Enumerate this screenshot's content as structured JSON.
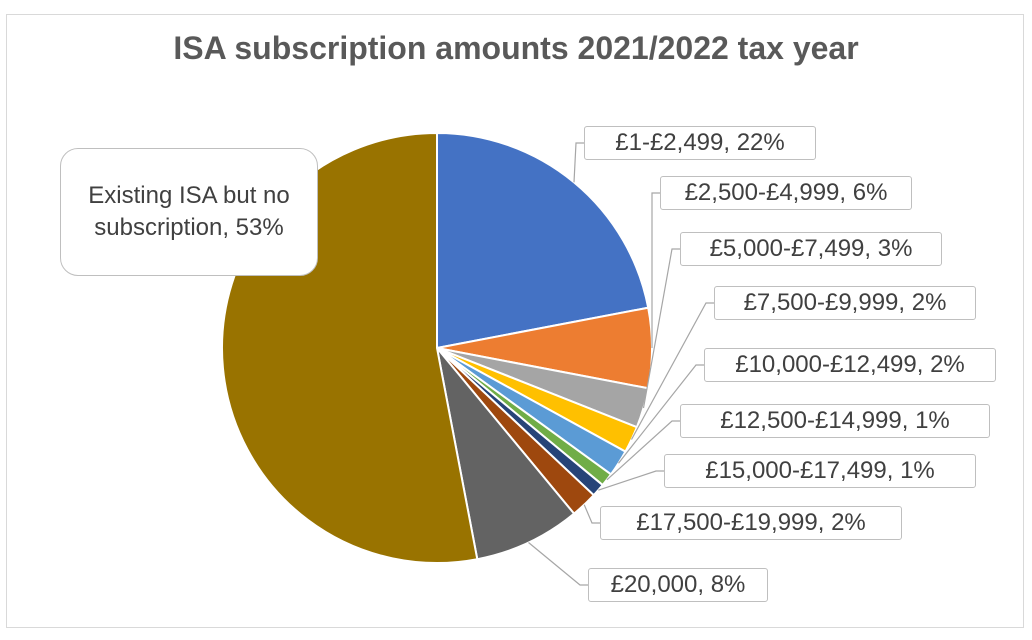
{
  "chart_data": {
    "type": "pie",
    "title": "ISA subscription amounts 2021/2022 tax year",
    "slices": [
      {
        "label": "£1-£2,499",
        "value": 22,
        "display": "£1-£2,499, 22%",
        "color": "#4472C4"
      },
      {
        "label": "£2,500-£4,999",
        "value": 6,
        "display": "£2,500-£4,999, 6%",
        "color": "#ED7D31"
      },
      {
        "label": "£5,000-£7,499",
        "value": 3,
        "display": "£5,000-£7,499, 3%",
        "color": "#A5A5A5"
      },
      {
        "label": "£7,500-£9,999",
        "value": 2,
        "display": "£7,500-£9,999, 2%",
        "color": "#FFC000"
      },
      {
        "label": "£10,000-£12,499",
        "value": 2,
        "display": "£10,000-£12,499, 2%",
        "color": "#5B9BD5"
      },
      {
        "label": "£12,500-£14,999",
        "value": 1,
        "display": "£12,500-£14,999, 1%",
        "color": "#70AD47"
      },
      {
        "label": "£15,000-£17,499",
        "value": 1,
        "display": "£15,000-£17,499, 1%",
        "color": "#264478"
      },
      {
        "label": "£17,500-£19,999",
        "value": 2,
        "display": "£17,500-£19,999, 2%",
        "color": "#9E480E"
      },
      {
        "label": "£20,000",
        "value": 8,
        "display": "£20,000, 8%",
        "color": "#636363"
      },
      {
        "label": "Existing ISA but no subscription",
        "value": 53,
        "display": "Existing ISA but no subscription, 53%",
        "color": "#997300"
      }
    ]
  }
}
